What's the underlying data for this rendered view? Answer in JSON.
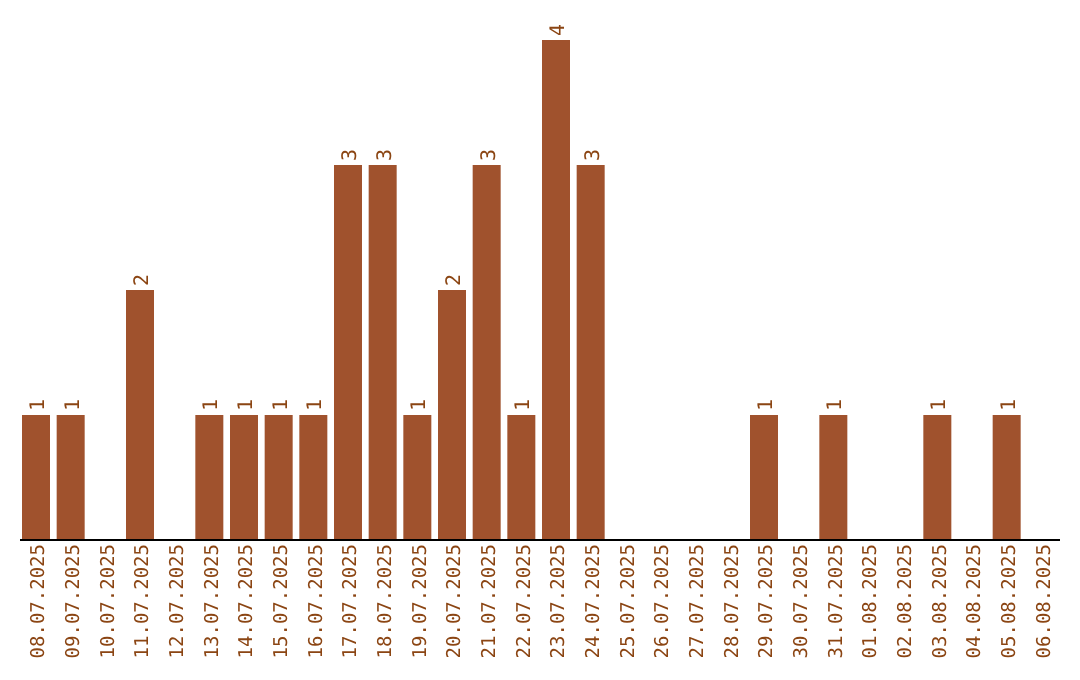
{
  "chart_data": {
    "type": "bar",
    "categories": [
      "08.07.2025",
      "09.07.2025",
      "10.07.2025",
      "11.07.2025",
      "12.07.2025",
      "13.07.2025",
      "14.07.2025",
      "15.07.2025",
      "16.07.2025",
      "17.07.2025",
      "18.07.2025",
      "19.07.2025",
      "20.07.2025",
      "21.07.2025",
      "22.07.2025",
      "23.07.2025",
      "24.07.2025",
      "25.07.2025",
      "26.07.2025",
      "27.07.2025",
      "28.07.2025",
      "29.07.2025",
      "30.07.2025",
      "31.07.2025",
      "01.08.2025",
      "02.08.2025",
      "03.08.2025",
      "04.08.2025",
      "05.08.2025",
      "06.08.2025"
    ],
    "values": [
      1,
      1,
      0,
      2,
      0,
      1,
      1,
      1,
      1,
      3,
      3,
      1,
      2,
      3,
      1,
      4,
      3,
      0,
      0,
      0,
      0,
      1,
      0,
      1,
      0,
      0,
      1,
      0,
      1,
      0
    ],
    "value_labels": [
      "1",
      "1",
      null,
      "2",
      null,
      "1",
      "1",
      "1",
      "1",
      "3",
      "3",
      "1",
      "2",
      "3",
      "1",
      "4",
      "3",
      null,
      null,
      null,
      null,
      "1",
      null,
      "1",
      null,
      null,
      "1",
      null,
      "1",
      null
    ],
    "color": "#a0522d",
    "tick_labels": "x"
  }
}
